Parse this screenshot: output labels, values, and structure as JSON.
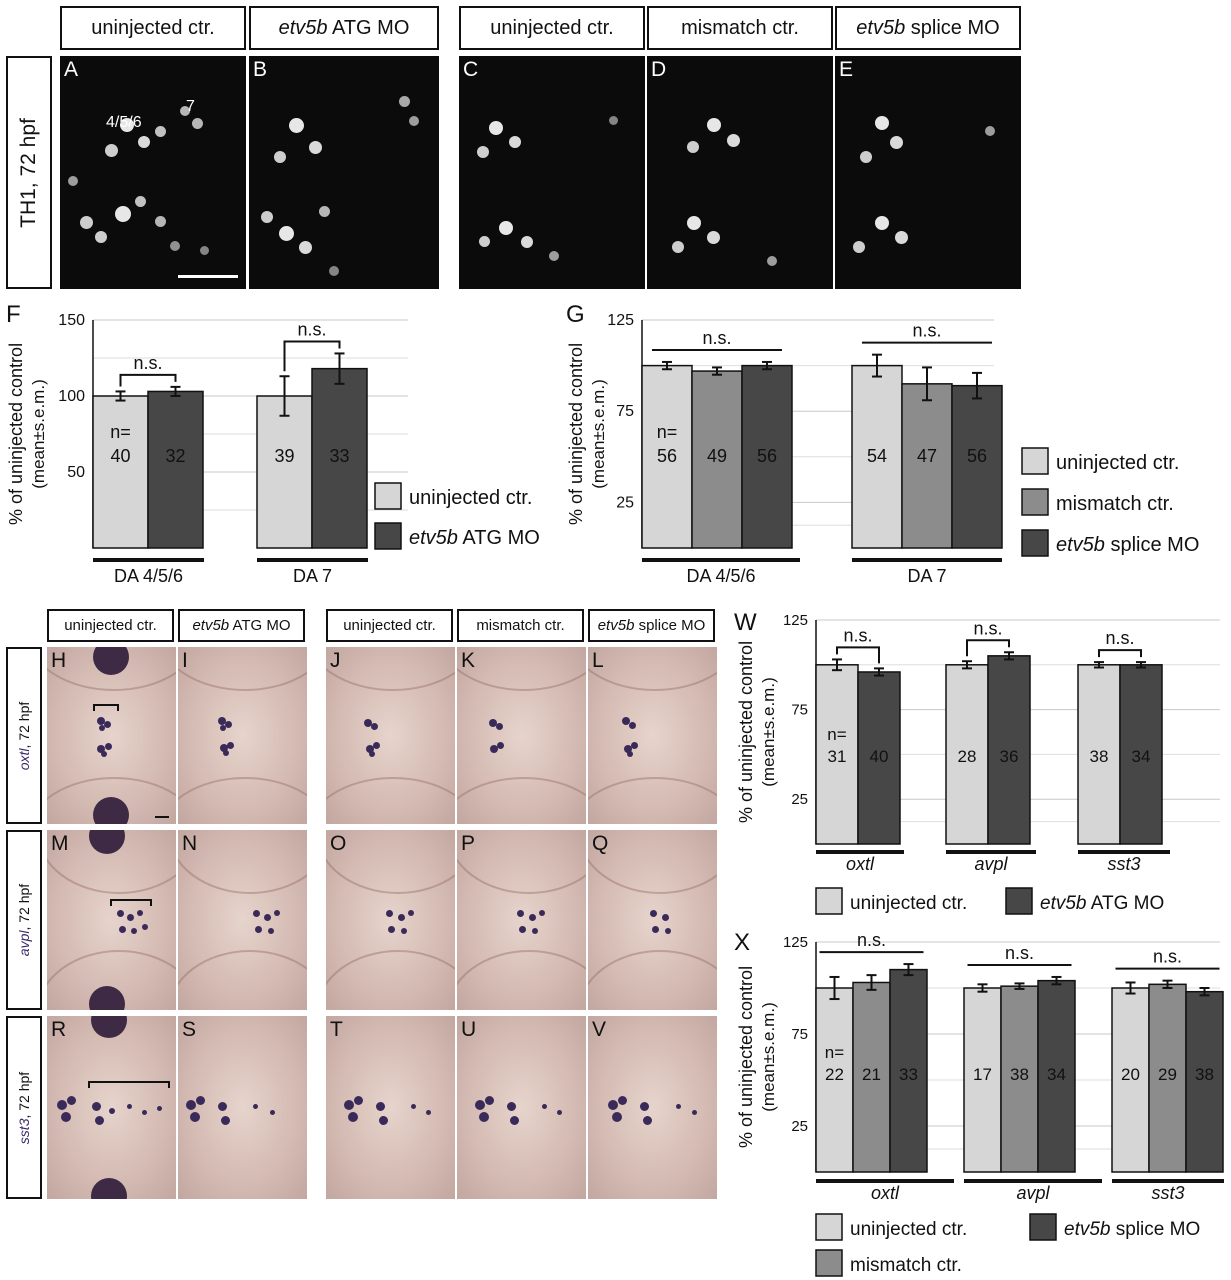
{
  "top_headers": {
    "a": "uninjected ctr.",
    "b_gene": "etv5b",
    "b_rest": " ATG MO",
    "c": "uninjected ctr.",
    "d": "mismatch ctr.",
    "e_gene": "etv5b",
    "e_rest": " splice MO"
  },
  "row_label_top": "TH1, 72 hpf",
  "panel_letters": [
    "A",
    "B",
    "C",
    "D",
    "E",
    "H",
    "I",
    "J",
    "K",
    "L",
    "M",
    "N",
    "O",
    "P",
    "Q",
    "R",
    "S",
    "T",
    "U",
    "V"
  ],
  "panel_A_annotations": {
    "group1": "4/5/6",
    "group2": "7"
  },
  "ish_headers": {
    "h": "uninjected ctr.",
    "i_gene": "etv5b",
    "i_rest": " ATG MO",
    "j": "uninjected ctr.",
    "k": "mismatch ctr.",
    "l_gene": "etv5b",
    "l_rest": " splice MO"
  },
  "ish_rows": [
    {
      "gene": "oxtl",
      "suffix": ", 72 hpf"
    },
    {
      "gene": "avpl",
      "suffix": ", 72 hpf"
    },
    {
      "gene": "sst3",
      "suffix": ", 72 hpf"
    }
  ],
  "colors": {
    "uninjected": "#d6d6d6",
    "mismatch": "#8c8c8c",
    "morphant": "#474747",
    "ish_stain": "#3a2a5a"
  },
  "chart_data": [
    {
      "panel": "F",
      "type": "bar",
      "ylabel_line1": "% of uninjected control",
      "ylabel_line2": "(mean±s.e.m.)",
      "ylim": [
        0,
        150
      ],
      "yticks": [
        50,
        100,
        150
      ],
      "groups": [
        {
          "label": "DA 4/5/6",
          "bars": [
            {
              "series": 0,
              "value": 100,
              "err": 3,
              "n": "40"
            },
            {
              "series": 1,
              "value": 103,
              "err": 3,
              "n": "32"
            }
          ],
          "sig": "n.s."
        },
        {
          "label": "DA 7",
          "bars": [
            {
              "series": 0,
              "value": 100,
              "err": 13,
              "n": "39"
            },
            {
              "series": 1,
              "value": 118,
              "err": 10,
              "n": "33"
            }
          ],
          "sig": "n.s."
        }
      ],
      "n_prefix": "n=",
      "legend": [
        {
          "text": "uninjected ctr.",
          "series": 0
        },
        {
          "gene": "etv5b",
          "text": " ATG MO",
          "series": 1
        }
      ]
    },
    {
      "panel": "G",
      "type": "bar",
      "ylabel_line1": "% of uninjected control",
      "ylabel_line2": "(mean±s.e.m.)",
      "ylim": [
        0,
        125
      ],
      "yticks": [
        25,
        75,
        125
      ],
      "groups": [
        {
          "label": "DA 4/5/6",
          "bars": [
            {
              "series": 0,
              "value": 100,
              "err": 2,
              "n": "56"
            },
            {
              "series": 2,
              "value": 97,
              "err": 2,
              "n": "49"
            },
            {
              "series": 1,
              "value": 100,
              "err": 2,
              "n": "56"
            }
          ],
          "sig": "n.s."
        },
        {
          "label": "DA 7",
          "bars": [
            {
              "series": 0,
              "value": 100,
              "err": 6,
              "n": "54"
            },
            {
              "series": 2,
              "value": 90,
              "err": 9,
              "n": "47"
            },
            {
              "series": 1,
              "value": 89,
              "err": 7,
              "n": "56"
            }
          ],
          "sig": "n.s."
        }
      ],
      "n_prefix": "n=",
      "legend": [
        {
          "text": "uninjected ctr.",
          "series": 0
        },
        {
          "text": "mismatch ctr.",
          "series": 2
        },
        {
          "gene": "etv5b",
          "text": " splice MO",
          "series": 1
        }
      ]
    },
    {
      "panel": "W",
      "type": "bar",
      "ylabel_line1": "% of uninjected control",
      "ylabel_line2": "(mean±s.e.m.)",
      "ylim": [
        0,
        125
      ],
      "yticks": [
        25,
        75,
        125
      ],
      "groups": [
        {
          "label": "oxtl",
          "bars": [
            {
              "series": 0,
              "value": 100,
              "err": 3,
              "n": "31"
            },
            {
              "series": 1,
              "value": 96,
              "err": 2,
              "n": "40"
            }
          ],
          "sig": "n.s."
        },
        {
          "label": "avpl",
          "bars": [
            {
              "series": 0,
              "value": 100,
              "err": 2,
              "n": "28"
            },
            {
              "series": 1,
              "value": 105,
              "err": 2,
              "n": "36"
            }
          ],
          "sig": "n.s."
        },
        {
          "label": "sst3",
          "bars": [
            {
              "series": 0,
              "value": 100,
              "err": 1.5,
              "n": "38"
            },
            {
              "series": 1,
              "value": 100,
              "err": 1.5,
              "n": "34"
            }
          ],
          "sig": "n.s."
        }
      ],
      "n_prefix": "n=",
      "legend": [
        {
          "text": "uninjected ctr.",
          "series": 0
        },
        {
          "gene": "etv5b",
          "text": " ATG MO",
          "series": 1
        }
      ]
    },
    {
      "panel": "X",
      "type": "bar",
      "ylabel_line1": "% of uninjected control",
      "ylabel_line2": "(mean±s.e.m.)",
      "ylim": [
        0,
        125
      ],
      "yticks": [
        25,
        75,
        125
      ],
      "groups": [
        {
          "label": "oxtl",
          "bars": [
            {
              "series": 0,
              "value": 100,
              "err": 6,
              "n": "22"
            },
            {
              "series": 2,
              "value": 103,
              "err": 4,
              "n": "21"
            },
            {
              "series": 1,
              "value": 110,
              "err": 3,
              "n": "33"
            }
          ],
          "sig": "n.s."
        },
        {
          "label": "avpl",
          "bars": [
            {
              "series": 0,
              "value": 100,
              "err": 2,
              "n": "17"
            },
            {
              "series": 2,
              "value": 101,
              "err": 1.5,
              "n": "38"
            },
            {
              "series": 1,
              "value": 104,
              "err": 2,
              "n": "34"
            }
          ],
          "sig": "n.s."
        },
        {
          "label": "sst3",
          "bars": [
            {
              "series": 0,
              "value": 100,
              "err": 3,
              "n": "20"
            },
            {
              "series": 2,
              "value": 102,
              "err": 2,
              "n": "29"
            },
            {
              "series": 1,
              "value": 98,
              "err": 2,
              "n": "38"
            }
          ],
          "sig": "n.s."
        }
      ],
      "n_prefix": "n=",
      "legend": [
        {
          "text": "uninjected ctr.",
          "series": 0
        },
        {
          "gene": "etv5b",
          "text": " splice MO",
          "series": 1
        },
        {
          "text": "mismatch ctr.",
          "series": 2
        }
      ]
    }
  ]
}
